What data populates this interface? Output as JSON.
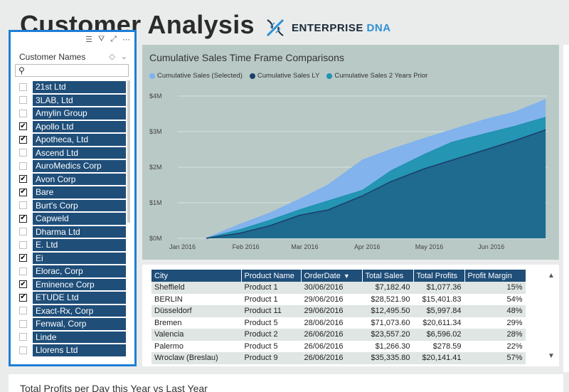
{
  "page": {
    "title": "Customer Analysis",
    "brand_name": "ENTERPRISE",
    "brand_suffix": "DNA"
  },
  "slicer": {
    "header": "Customer Names",
    "search_placeholder": "",
    "items": [
      {
        "label": "21st Ltd",
        "checked": false
      },
      {
        "label": "3LAB, Ltd",
        "checked": false
      },
      {
        "label": "Amylin Group",
        "checked": false
      },
      {
        "label": "Apollo Ltd",
        "checked": true
      },
      {
        "label": "Apotheca, Ltd",
        "checked": true
      },
      {
        "label": "Ascend Ltd",
        "checked": false
      },
      {
        "label": "AuroMedics Corp",
        "checked": false
      },
      {
        "label": "Avon Corp",
        "checked": true
      },
      {
        "label": "Bare",
        "checked": true
      },
      {
        "label": "Burt's Corp",
        "checked": false
      },
      {
        "label": "Capweld",
        "checked": true
      },
      {
        "label": "Dharma Ltd",
        "checked": false
      },
      {
        "label": "E. Ltd",
        "checked": false
      },
      {
        "label": "Ei",
        "checked": true
      },
      {
        "label": "Elorac, Corp",
        "checked": false
      },
      {
        "label": "Eminence Corp",
        "checked": true
      },
      {
        "label": "ETUDE Ltd",
        "checked": true
      },
      {
        "label": "Exact-Rx, Corp",
        "checked": false
      },
      {
        "label": "Fenwal, Corp",
        "checked": false
      },
      {
        "label": "Linde",
        "checked": false
      },
      {
        "label": "Llorens Ltd",
        "checked": false
      }
    ]
  },
  "chart": {
    "title": "Cumulative Sales Time Frame Comparisons",
    "colors": {
      "selected": "#7fb2ef",
      "ly": "#1a3f6b",
      "two_years": "#1f93b0",
      "bg": "#b9c9c6",
      "grid": "#d8e2e0"
    }
  },
  "chart_data": {
    "type": "area",
    "title": "Cumulative Sales Time Frame Comparisons",
    "xlabel": "",
    "ylabel": "",
    "x_ticks": [
      "Jan 2016",
      "Feb 2016",
      "Mar 2016",
      "Apr 2016",
      "May 2016",
      "Jun 2016"
    ],
    "y_ticks": [
      "$0M",
      "$1M",
      "$2M",
      "$3M",
      "$4M"
    ],
    "ylim": [
      0,
      4000000
    ],
    "x": [
      "2016-01-15",
      "2016-02-01",
      "2016-02-15",
      "2016-03-01",
      "2016-03-15",
      "2016-04-01",
      "2016-04-15",
      "2016-05-01",
      "2016-05-15",
      "2016-06-01",
      "2016-06-15",
      "2016-06-30"
    ],
    "series": [
      {
        "name": "Cumulative Sales (Selected)",
        "values": [
          0,
          400000,
          700000,
          1100000,
          1500000,
          2200000,
          2500000,
          2800000,
          3050000,
          3350000,
          3550000,
          3900000
        ]
      },
      {
        "name": "Cumulative Sales LY",
        "values": [
          0,
          150000,
          350000,
          650000,
          800000,
          1200000,
          1600000,
          1950000,
          2200000,
          2500000,
          2750000,
          3050000
        ]
      },
      {
        "name": "Cumulative Sales 2 Years Prior",
        "values": [
          0,
          250000,
          500000,
          800000,
          1050000,
          1350000,
          1900000,
          2350000,
          2700000,
          2950000,
          3150000,
          3400000
        ]
      }
    ],
    "legend": "top-left",
    "grid": true
  },
  "table": {
    "columns": [
      "City",
      "Product Name",
      "OrderDate",
      "Total Sales",
      "Total Profits",
      "Profit Margin"
    ],
    "sort_column": "OrderDate",
    "rows": [
      [
        "Sheffield",
        "Product 1",
        "30/06/2016",
        "$7,182.40",
        "$1,077.36",
        "15%"
      ],
      [
        "BERLIN",
        "Product 1",
        "29/06/2016",
        "$28,521.90",
        "$15,401.83",
        "54%"
      ],
      [
        "Düsseldorf",
        "Product 11",
        "29/06/2016",
        "$12,495.50",
        "$5,997.84",
        "48%"
      ],
      [
        "Bremen",
        "Product 5",
        "28/06/2016",
        "$71,073.60",
        "$20,611.34",
        "29%"
      ],
      [
        "Valencia",
        "Product 2",
        "26/06/2016",
        "$23,557.20",
        "$6,596.02",
        "28%"
      ],
      [
        "Palermo",
        "Product 5",
        "26/06/2016",
        "$1,266.30",
        "$278.59",
        "22%"
      ],
      [
        "Wroclaw (Breslau)",
        "Product 9",
        "26/06/2016",
        "$35,335.80",
        "$20,141.41",
        "57%"
      ]
    ]
  },
  "bottom": {
    "title": "Total Profits per Day this Year vs Last Year"
  }
}
